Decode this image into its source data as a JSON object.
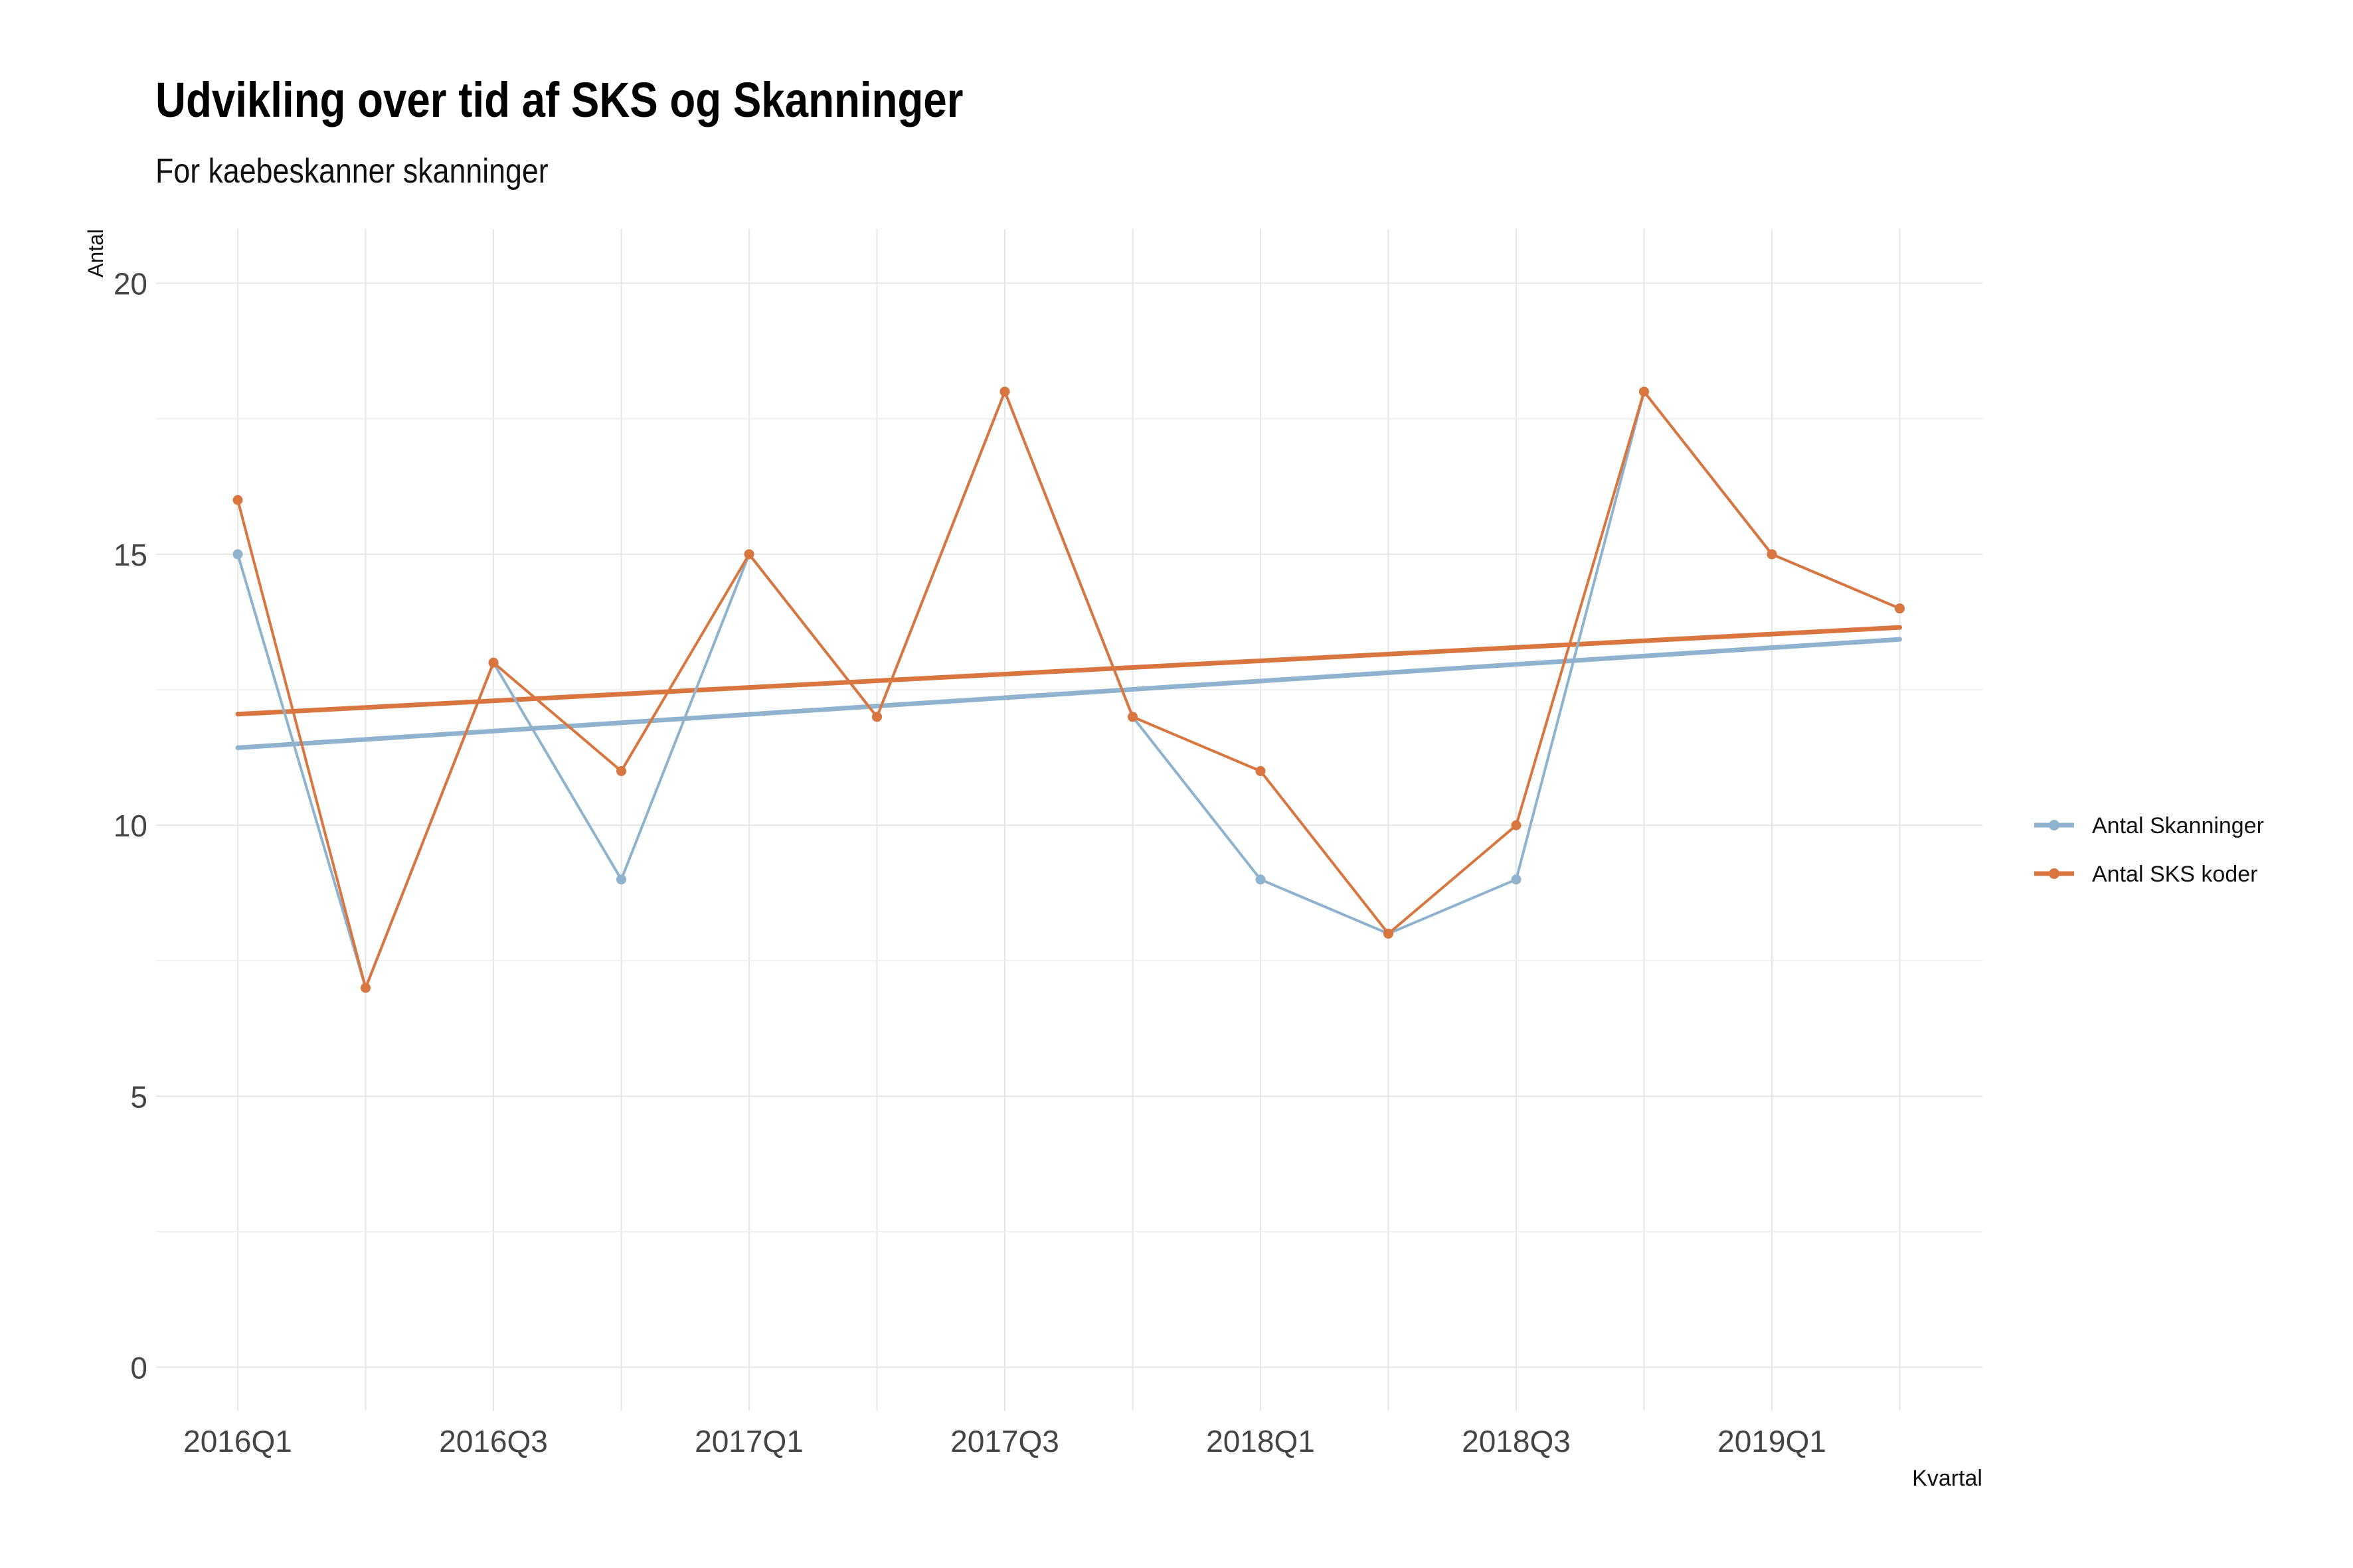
{
  "chart_data": {
    "type": "line",
    "title": "Udvikling over tid af SKS og Skanninger",
    "subtitle": "For kaebeskanner skanninger",
    "xlabel": "Kvartal",
    "ylabel": "Antal",
    "categories": [
      "2016Q1",
      "2016Q2",
      "2016Q3",
      "2016Q4",
      "2017Q1",
      "2017Q2",
      "2017Q3",
      "2017Q4",
      "2018Q1",
      "2018Q2",
      "2018Q3",
      "2018Q4",
      "2019Q1",
      "2019Q2"
    ],
    "x_tick_labels": [
      "2016Q1",
      "2016Q3",
      "2017Q1",
      "2017Q3",
      "2018Q1",
      "2018Q3",
      "2019Q1"
    ],
    "y_ticks": [
      0,
      5,
      10,
      15,
      20
    ],
    "ylim": [
      -0.8,
      21
    ],
    "grid": true,
    "legend_position": "right",
    "series": [
      {
        "name": "Antal Skanninger",
        "color": "#8fb3cf",
        "values": [
          15,
          7,
          13,
          9,
          15,
          12,
          18,
          12,
          9,
          8,
          9,
          18,
          15,
          14
        ],
        "trend": [
          11.43,
          13.43
        ]
      },
      {
        "name": "Antal SKS koder",
        "color": "#d9763f",
        "values": [
          16,
          7,
          13,
          11,
          15,
          12,
          18,
          12,
          11,
          8,
          10,
          18,
          15,
          14
        ],
        "trend": [
          12.05,
          13.65
        ]
      }
    ]
  }
}
